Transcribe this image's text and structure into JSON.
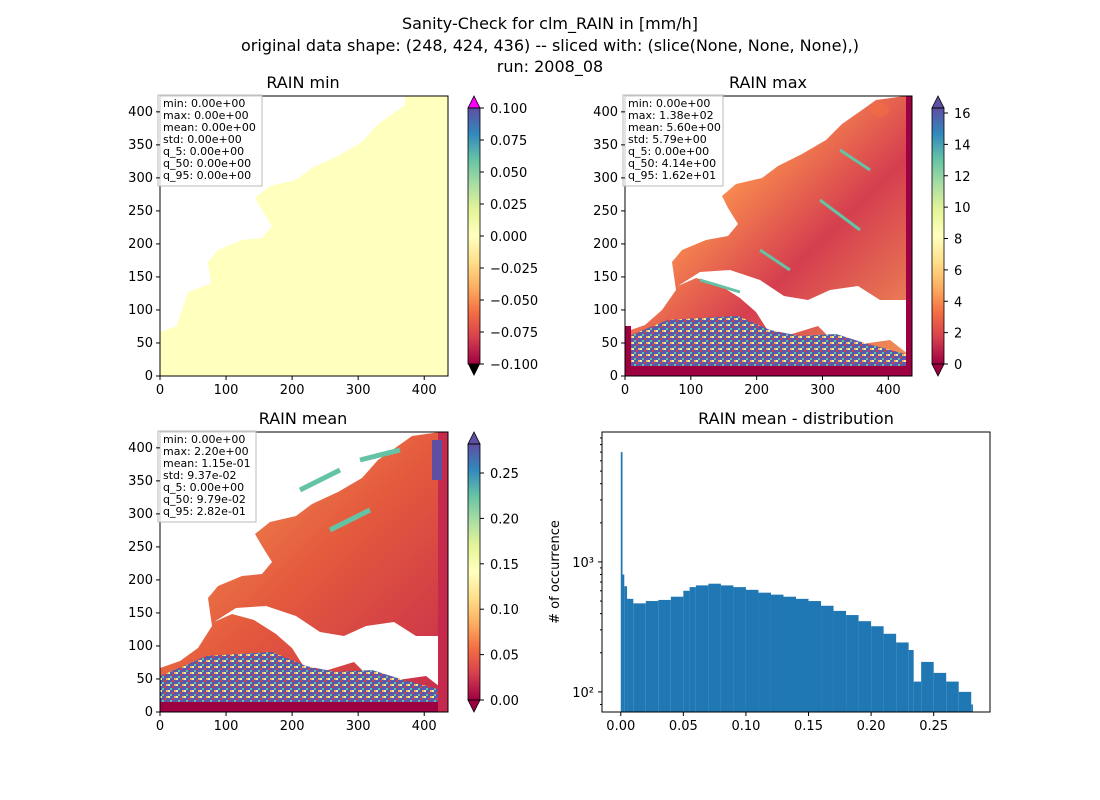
{
  "figure": {
    "title_line1": "Sanity-Check for clm_RAIN in [mm/h]",
    "title_line2": "original data shape: (248, 424, 436) -- sliced with: (slice(None, None, None),)",
    "title_line3": "run: 2008_08"
  },
  "panels": {
    "min": {
      "title": "RAIN min",
      "stats": [
        "min: 0.00e+00",
        "max: 0.00e+00",
        "mean: 0.00e+00",
        "std: 0.00e+00",
        "q_5: 0.00e+00",
        "q_50: 0.00e+00",
        "q_95: 0.00e+00"
      ],
      "cb_ticks": [
        "0.100",
        "0.075",
        "0.050",
        "0.025",
        "0.000",
        "−0.025",
        "−0.050",
        "−0.075",
        "−0.100"
      ],
      "fill_color": "#ffffbe",
      "over_color": "#ff00ff"
    },
    "max": {
      "title": "RAIN max",
      "stats": [
        "min: 0.00e+00",
        "max: 1.38e+02",
        "mean: 5.60e+00",
        "std: 5.79e+00",
        "q_5: 0.00e+00",
        "q_50: 4.14e+00",
        "q_95: 1.62e+01"
      ],
      "cb_ticks": [
        "16",
        "14",
        "12",
        "10",
        "8",
        "6",
        "4",
        "2",
        "0"
      ]
    },
    "mean": {
      "title": "RAIN mean",
      "stats": [
        "min: 0.00e+00",
        "max: 2.20e+00",
        "mean: 1.15e-01",
        "std: 9.37e-02",
        "q_5: 0.00e+00",
        "q_50: 9.79e-02",
        "q_95: 2.82e-01"
      ],
      "cb_ticks": [
        "0.25",
        "0.20",
        "0.15",
        "0.10",
        "0.05",
        "0.00"
      ]
    },
    "map_axes": {
      "x_ticks": [
        "0",
        "100",
        "200",
        "300",
        "400"
      ],
      "y_ticks": [
        "400",
        "350",
        "300",
        "250",
        "200",
        "150",
        "100",
        "50",
        "0"
      ]
    }
  },
  "chart_data": {
    "type": "bar",
    "title": "RAIN mean - distribution",
    "xlabel": "",
    "ylabel": "# of occurrence",
    "y_scale": "log",
    "xlim": [
      -0.015,
      0.295
    ],
    "ylim": [
      70,
      10000
    ],
    "x_ticks": [
      "0.00",
      "0.05",
      "0.10",
      "0.15",
      "0.20",
      "0.25"
    ],
    "y_ticks": [
      "10³",
      "10²"
    ],
    "bar_color": "#1f77b4",
    "bin_width": 0.0014,
    "x": [
      0.0,
      0.0014,
      0.0028,
      0.005,
      0.01,
      0.02,
      0.03,
      0.04,
      0.05,
      0.055,
      0.06,
      0.07,
      0.08,
      0.09,
      0.1,
      0.11,
      0.12,
      0.13,
      0.14,
      0.15,
      0.16,
      0.17,
      0.18,
      0.19,
      0.2,
      0.21,
      0.22,
      0.23,
      0.234,
      0.24,
      0.25,
      0.26,
      0.27,
      0.28
    ],
    "values": [
      7000,
      800,
      650,
      520,
      480,
      500,
      510,
      540,
      600,
      640,
      660,
      680,
      660,
      640,
      610,
      580,
      560,
      540,
      520,
      500,
      460,
      420,
      390,
      350,
      320,
      280,
      240,
      210,
      120,
      170,
      140,
      120,
      100,
      80
    ]
  }
}
